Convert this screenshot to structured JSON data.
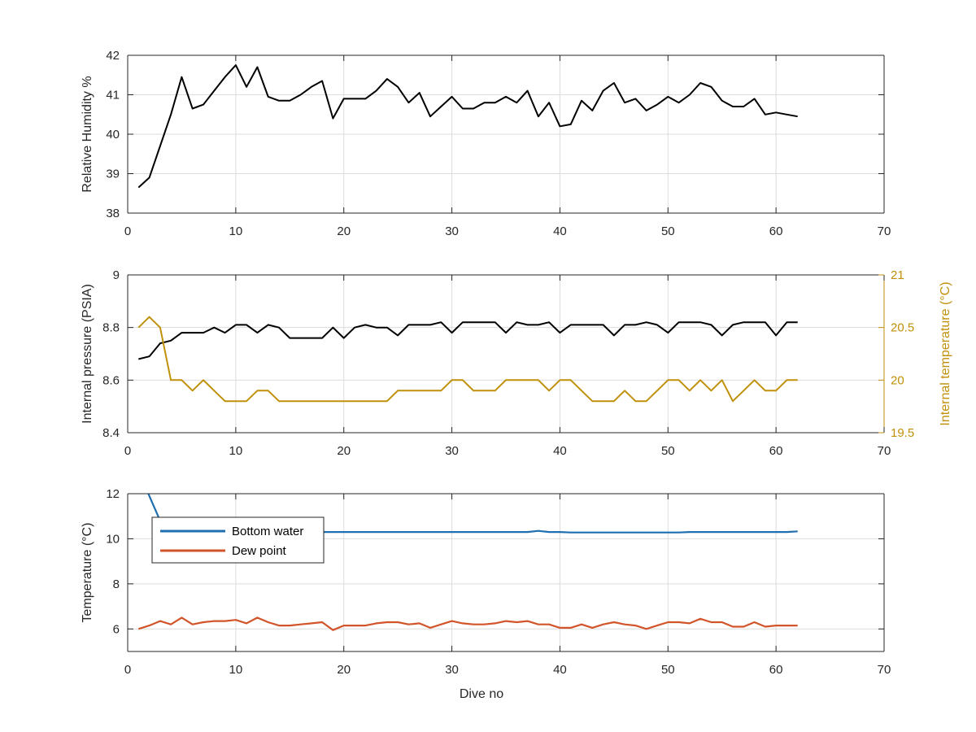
{
  "chart_data": [
    {
      "type": "line",
      "xlim": [
        0,
        70
      ],
      "xticks": [
        0,
        10,
        20,
        30,
        40,
        50,
        60,
        70
      ],
      "ylim": [
        38,
        42
      ],
      "yticks": [
        38,
        39,
        40,
        41,
        42
      ],
      "ylabel": "Relative Humidity %",
      "xlabel": "",
      "grid": true,
      "series": [
        {
          "color": "#000000",
          "x": [
            1,
            2,
            3,
            4,
            5,
            6,
            7,
            8,
            9,
            10,
            11,
            12,
            13,
            14,
            15,
            16,
            17,
            18,
            19,
            20,
            21,
            22,
            23,
            24,
            25,
            26,
            27,
            28,
            29,
            30,
            31,
            32,
            33,
            34,
            35,
            36,
            37,
            38,
            39,
            40,
            41,
            42,
            43,
            44,
            45,
            46,
            47,
            48,
            49,
            50,
            51,
            52,
            53,
            54,
            55,
            56,
            57,
            58,
            59,
            60,
            61,
            62
          ],
          "values": [
            38.65,
            38.9,
            39.7,
            40.5,
            41.45,
            40.65,
            40.75,
            41.1,
            41.45,
            41.75,
            41.2,
            41.7,
            40.95,
            40.85,
            40.85,
            41.0,
            41.2,
            41.35,
            40.4,
            40.9,
            40.9,
            40.9,
            41.1,
            41.4,
            41.2,
            40.8,
            41.05,
            40.45,
            40.7,
            40.95,
            40.65,
            40.65,
            40.8,
            40.8,
            40.95,
            40.8,
            41.1,
            40.45,
            40.8,
            40.2,
            40.25,
            40.85,
            40.6,
            41.1,
            41.3,
            40.8,
            40.9,
            40.6,
            40.75,
            40.95,
            40.8,
            41.0,
            41.3,
            41.2,
            40.85,
            40.7,
            40.7,
            40.9,
            40.5,
            40.55,
            40.5,
            40.45
          ]
        }
      ]
    },
    {
      "type": "line",
      "xlim": [
        0,
        70
      ],
      "xticks": [
        0,
        10,
        20,
        30,
        40,
        50,
        60,
        70
      ],
      "ylim": [
        8.4,
        9
      ],
      "yticks": [
        8.4,
        8.6,
        8.8,
        9
      ],
      "ylabel": "Internal pressure (PSIA)",
      "y2lim": [
        19.5,
        21
      ],
      "y2ticks": [
        19.5,
        20,
        20.5,
        21
      ],
      "y2label": "Internal temperature (°C)",
      "y2color": "#c0900a",
      "grid": true,
      "series": [
        {
          "axis": "left",
          "color": "#000000",
          "x": [
            1,
            2,
            3,
            4,
            5,
            6,
            7,
            8,
            9,
            10,
            11,
            12,
            13,
            14,
            15,
            16,
            17,
            18,
            19,
            20,
            21,
            22,
            23,
            24,
            25,
            26,
            27,
            28,
            29,
            30,
            31,
            32,
            33,
            34,
            35,
            36,
            37,
            38,
            39,
            40,
            41,
            42,
            43,
            44,
            45,
            46,
            47,
            48,
            49,
            50,
            51,
            52,
            53,
            54,
            55,
            56,
            57,
            58,
            59,
            60,
            61,
            62
          ],
          "values": [
            8.68,
            8.69,
            8.74,
            8.75,
            8.78,
            8.78,
            8.78,
            8.8,
            8.78,
            8.81,
            8.81,
            8.78,
            8.81,
            8.8,
            8.76,
            8.76,
            8.76,
            8.76,
            8.8,
            8.76,
            8.8,
            8.81,
            8.8,
            8.8,
            8.77,
            8.81,
            8.81,
            8.81,
            8.82,
            8.78,
            8.82,
            8.82,
            8.82,
            8.82,
            8.78,
            8.82,
            8.81,
            8.81,
            8.82,
            8.78,
            8.81,
            8.81,
            8.81,
            8.81,
            8.77,
            8.81,
            8.81,
            8.82,
            8.81,
            8.78,
            8.82,
            8.82,
            8.82,
            8.81,
            8.77,
            8.81,
            8.82,
            8.82,
            8.82,
            8.77,
            8.82,
            8.82
          ]
        },
        {
          "axis": "right",
          "color": "#c0900a",
          "x": [
            1,
            2,
            3,
            4,
            5,
            6,
            7,
            8,
            9,
            10,
            11,
            12,
            13,
            14,
            15,
            16,
            17,
            18,
            19,
            20,
            21,
            22,
            23,
            24,
            25,
            26,
            27,
            28,
            29,
            30,
            31,
            32,
            33,
            34,
            35,
            36,
            37,
            38,
            39,
            40,
            41,
            42,
            43,
            44,
            45,
            46,
            47,
            48,
            49,
            50,
            51,
            52,
            53,
            54,
            55,
            56,
            57,
            58,
            59,
            60,
            61,
            62
          ],
          "values": [
            20.5,
            20.6,
            20.5,
            20.0,
            20.0,
            19.9,
            20.0,
            19.9,
            19.8,
            19.8,
            19.8,
            19.9,
            19.9,
            19.8,
            19.8,
            19.8,
            19.8,
            19.8,
            19.8,
            19.8,
            19.8,
            19.8,
            19.8,
            19.8,
            19.9,
            19.9,
            19.9,
            19.9,
            19.9,
            20.0,
            20.0,
            19.9,
            19.9,
            19.9,
            20.0,
            20.0,
            20.0,
            20.0,
            19.9,
            20.0,
            20.0,
            19.9,
            19.8,
            19.8,
            19.8,
            19.9,
            19.8,
            19.8,
            19.9,
            20.0,
            20.0,
            19.9,
            20.0,
            19.9,
            20.0,
            19.8,
            19.9,
            20.0,
            19.9,
            19.9,
            20.0,
            20.0
          ]
        }
      ]
    },
    {
      "type": "line",
      "xlim": [
        0,
        70
      ],
      "xticks": [
        0,
        10,
        20,
        30,
        40,
        50,
        60,
        70
      ],
      "ylim": [
        5,
        12
      ],
      "yticks": [
        6,
        8,
        10,
        12
      ],
      "ylabel": "Temperature (°C)",
      "xlabel": "Dive no",
      "grid": true,
      "legend": "top-left",
      "series": [
        {
          "name": "Bottom water",
          "color": "#1f6fb0",
          "x": [
            1,
            2,
            3,
            4,
            5,
            6,
            7,
            8,
            9,
            10,
            11,
            12,
            13,
            14,
            15,
            16,
            17,
            18,
            19,
            20,
            21,
            22,
            23,
            24,
            25,
            26,
            27,
            28,
            29,
            30,
            31,
            32,
            33,
            34,
            35,
            36,
            37,
            38,
            39,
            40,
            41,
            42,
            43,
            44,
            45,
            46,
            47,
            48,
            49,
            50,
            51,
            52,
            53,
            54,
            55,
            56,
            57,
            58,
            59,
            60,
            61,
            62
          ],
          "values": [
            13.0,
            11.9,
            10.8,
            10.3,
            10.3,
            10.3,
            10.3,
            10.3,
            10.3,
            10.3,
            10.3,
            10.3,
            10.3,
            10.3,
            10.3,
            10.3,
            10.3,
            10.3,
            10.3,
            10.3,
            10.3,
            10.3,
            10.3,
            10.3,
            10.3,
            10.3,
            10.3,
            10.3,
            10.3,
            10.3,
            10.3,
            10.3,
            10.3,
            10.3,
            10.3,
            10.3,
            10.3,
            10.35,
            10.3,
            10.3,
            10.28,
            10.28,
            10.28,
            10.28,
            10.28,
            10.28,
            10.28,
            10.28,
            10.28,
            10.28,
            10.28,
            10.3,
            10.3,
            10.3,
            10.3,
            10.3,
            10.3,
            10.3,
            10.3,
            10.3,
            10.3,
            10.33
          ]
        },
        {
          "name": "Dew point",
          "color": "#d2542a",
          "x": [
            1,
            2,
            3,
            4,
            5,
            6,
            7,
            8,
            9,
            10,
            11,
            12,
            13,
            14,
            15,
            16,
            17,
            18,
            19,
            20,
            21,
            22,
            23,
            24,
            25,
            26,
            27,
            28,
            29,
            30,
            31,
            32,
            33,
            34,
            35,
            36,
            37,
            38,
            39,
            40,
            41,
            42,
            43,
            44,
            45,
            46,
            47,
            48,
            49,
            50,
            51,
            52,
            53,
            54,
            55,
            56,
            57,
            58,
            59,
            60,
            61,
            62
          ],
          "values": [
            6.0,
            6.15,
            6.35,
            6.2,
            6.5,
            6.2,
            6.3,
            6.35,
            6.35,
            6.4,
            6.25,
            6.5,
            6.3,
            6.15,
            6.15,
            6.2,
            6.25,
            6.3,
            5.95,
            6.15,
            6.15,
            6.15,
            6.25,
            6.3,
            6.3,
            6.2,
            6.25,
            6.05,
            6.2,
            6.35,
            6.25,
            6.2,
            6.2,
            6.25,
            6.35,
            6.3,
            6.35,
            6.2,
            6.2,
            6.05,
            6.05,
            6.2,
            6.05,
            6.2,
            6.3,
            6.2,
            6.15,
            6.0,
            6.15,
            6.3,
            6.3,
            6.25,
            6.45,
            6.3,
            6.3,
            6.1,
            6.1,
            6.3,
            6.1,
            6.15,
            6.15,
            6.15
          ]
        }
      ]
    }
  ]
}
